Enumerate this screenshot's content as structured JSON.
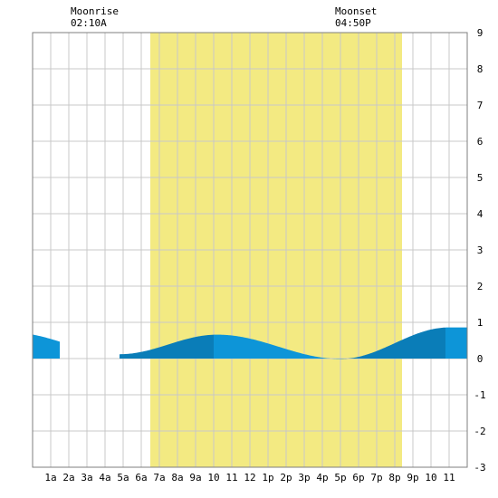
{
  "moon": {
    "rise_label": "Moonrise",
    "rise_time": "02:10A",
    "set_label": "Moonset",
    "set_time": "04:50P"
  },
  "colors": {
    "daylight": "#f3ea82",
    "grid": "#c8c8c8",
    "border": "#7f7f7f",
    "tide_light": "#0d95d8",
    "tide_dark": "#0a7db8",
    "background": "#ffffff"
  },
  "chart_data": {
    "type": "area",
    "title": "",
    "xlabel": "",
    "ylabel": "",
    "xlim": [
      0,
      24
    ],
    "ylim": [
      -3,
      9
    ],
    "grid": true,
    "x_ticks": [
      {
        "hour": 1,
        "label": "1a"
      },
      {
        "hour": 2,
        "label": "2a"
      },
      {
        "hour": 3,
        "label": "3a"
      },
      {
        "hour": 4,
        "label": "4a"
      },
      {
        "hour": 5,
        "label": "5a"
      },
      {
        "hour": 6,
        "label": "6a"
      },
      {
        "hour": 7,
        "label": "7a"
      },
      {
        "hour": 8,
        "label": "8a"
      },
      {
        "hour": 9,
        "label": "9a"
      },
      {
        "hour": 10,
        "label": "10"
      },
      {
        "hour": 11,
        "label": "11"
      },
      {
        "hour": 12,
        "label": "12"
      },
      {
        "hour": 13,
        "label": "1p"
      },
      {
        "hour": 14,
        "label": "2p"
      },
      {
        "hour": 15,
        "label": "3p"
      },
      {
        "hour": 16,
        "label": "4p"
      },
      {
        "hour": 17,
        "label": "5p"
      },
      {
        "hour": 18,
        "label": "6p"
      },
      {
        "hour": 19,
        "label": "7p"
      },
      {
        "hour": 20,
        "label": "8p"
      },
      {
        "hour": 21,
        "label": "9p"
      },
      {
        "hour": 22,
        "label": "10"
      },
      {
        "hour": 23,
        "label": "11"
      }
    ],
    "y_ticks": [
      {
        "value": 9,
        "label": "9"
      },
      {
        "value": 8,
        "label": "8"
      },
      {
        "value": 7,
        "label": "7"
      },
      {
        "value": 6,
        "label": "6"
      },
      {
        "value": 5,
        "label": "5"
      },
      {
        "value": 4,
        "label": "4"
      },
      {
        "value": 3,
        "label": "3"
      },
      {
        "value": 2,
        "label": "2"
      },
      {
        "value": 1,
        "label": "1"
      },
      {
        "value": 0,
        "label": "0"
      },
      {
        "value": -1,
        "label": "-1"
      },
      {
        "value": -2,
        "label": "-2"
      },
      {
        "value": -3,
        "label": "-3"
      }
    ],
    "daylight": {
      "start_hour": 6.5,
      "end_hour": 20.4
    },
    "tide_extremes": [
      {
        "hour": -1.2,
        "value": 0.72
      },
      {
        "hour": 4.8,
        "value": 0.12
      },
      {
        "hour": 10.2,
        "value": 0.66
      },
      {
        "hour": 17.0,
        "value": -0.01
      },
      {
        "hour": 23.0,
        "value": 0.86
      }
    ],
    "shade_bands": [
      {
        "start_hour": 0,
        "end_hour": 1.5,
        "tone": "light"
      },
      {
        "start_hour": 4.8,
        "end_hour": 10.0,
        "tone": "dark"
      },
      {
        "start_hour": 10.0,
        "end_hour": 17.0,
        "tone": "light"
      },
      {
        "start_hour": 17.0,
        "end_hour": 22.8,
        "tone": "dark"
      },
      {
        "start_hour": 22.8,
        "end_hour": 24,
        "tone": "light"
      }
    ],
    "moon_markers": [
      {
        "hour": 2.17,
        "label": "Moonrise",
        "time": "02:10A"
      },
      {
        "hour": 16.83,
        "label": "Moonset",
        "time": "04:50P"
      }
    ]
  }
}
